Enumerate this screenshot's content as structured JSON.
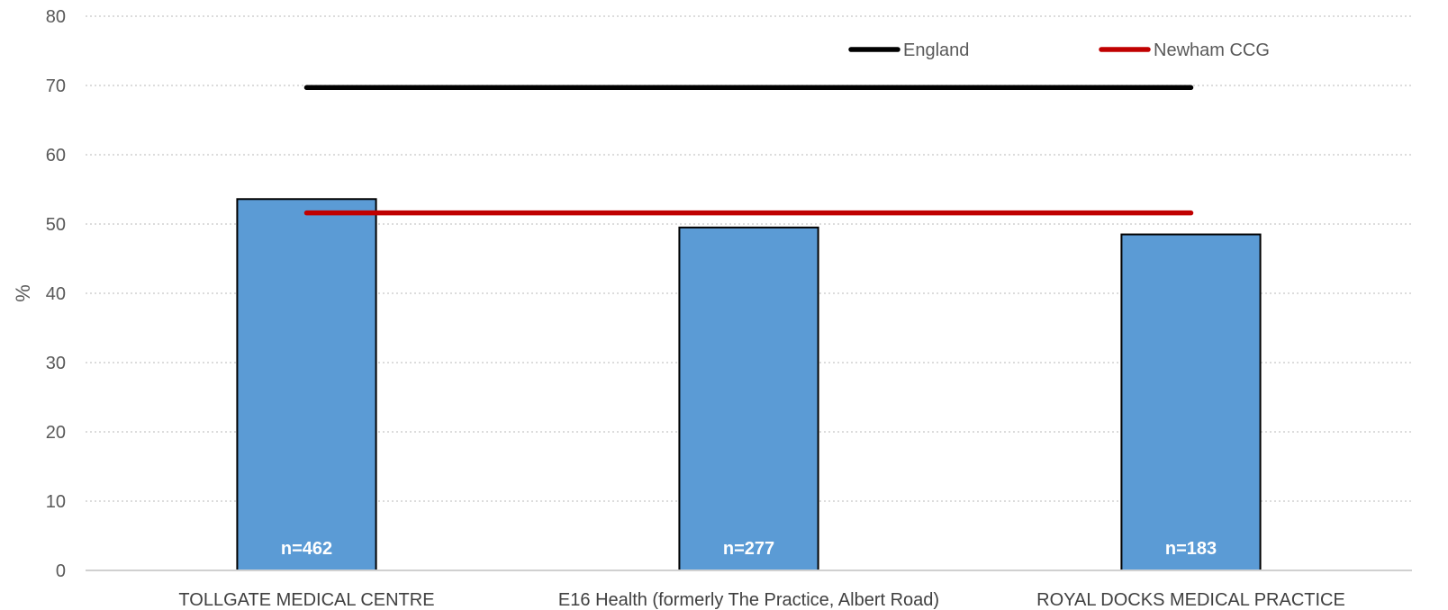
{
  "chart_data": {
    "type": "bar",
    "title": "",
    "xlabel": "",
    "ylabel": "%",
    "ylim": [
      0,
      80
    ],
    "yticks": [
      0,
      10,
      20,
      30,
      40,
      50,
      60,
      70,
      80
    ],
    "grid": true,
    "legend_position": "top-right",
    "categories": [
      "TOLLGATE MEDICAL CENTRE",
      "E16 Health (formerly The Practice, Albert Road)",
      "ROYAL DOCKS MEDICAL PRACTICE"
    ],
    "values": [
      53.6,
      49.5,
      48.5
    ],
    "data_labels": [
      "n=462",
      "n=277",
      "n=183"
    ],
    "bar_color": "#5B9BD5",
    "reference_lines": [
      {
        "name": "England",
        "value": 69.7,
        "color": "#000000"
      },
      {
        "name": "Newham CCG",
        "value": 51.6,
        "color": "#C00000"
      }
    ]
  }
}
